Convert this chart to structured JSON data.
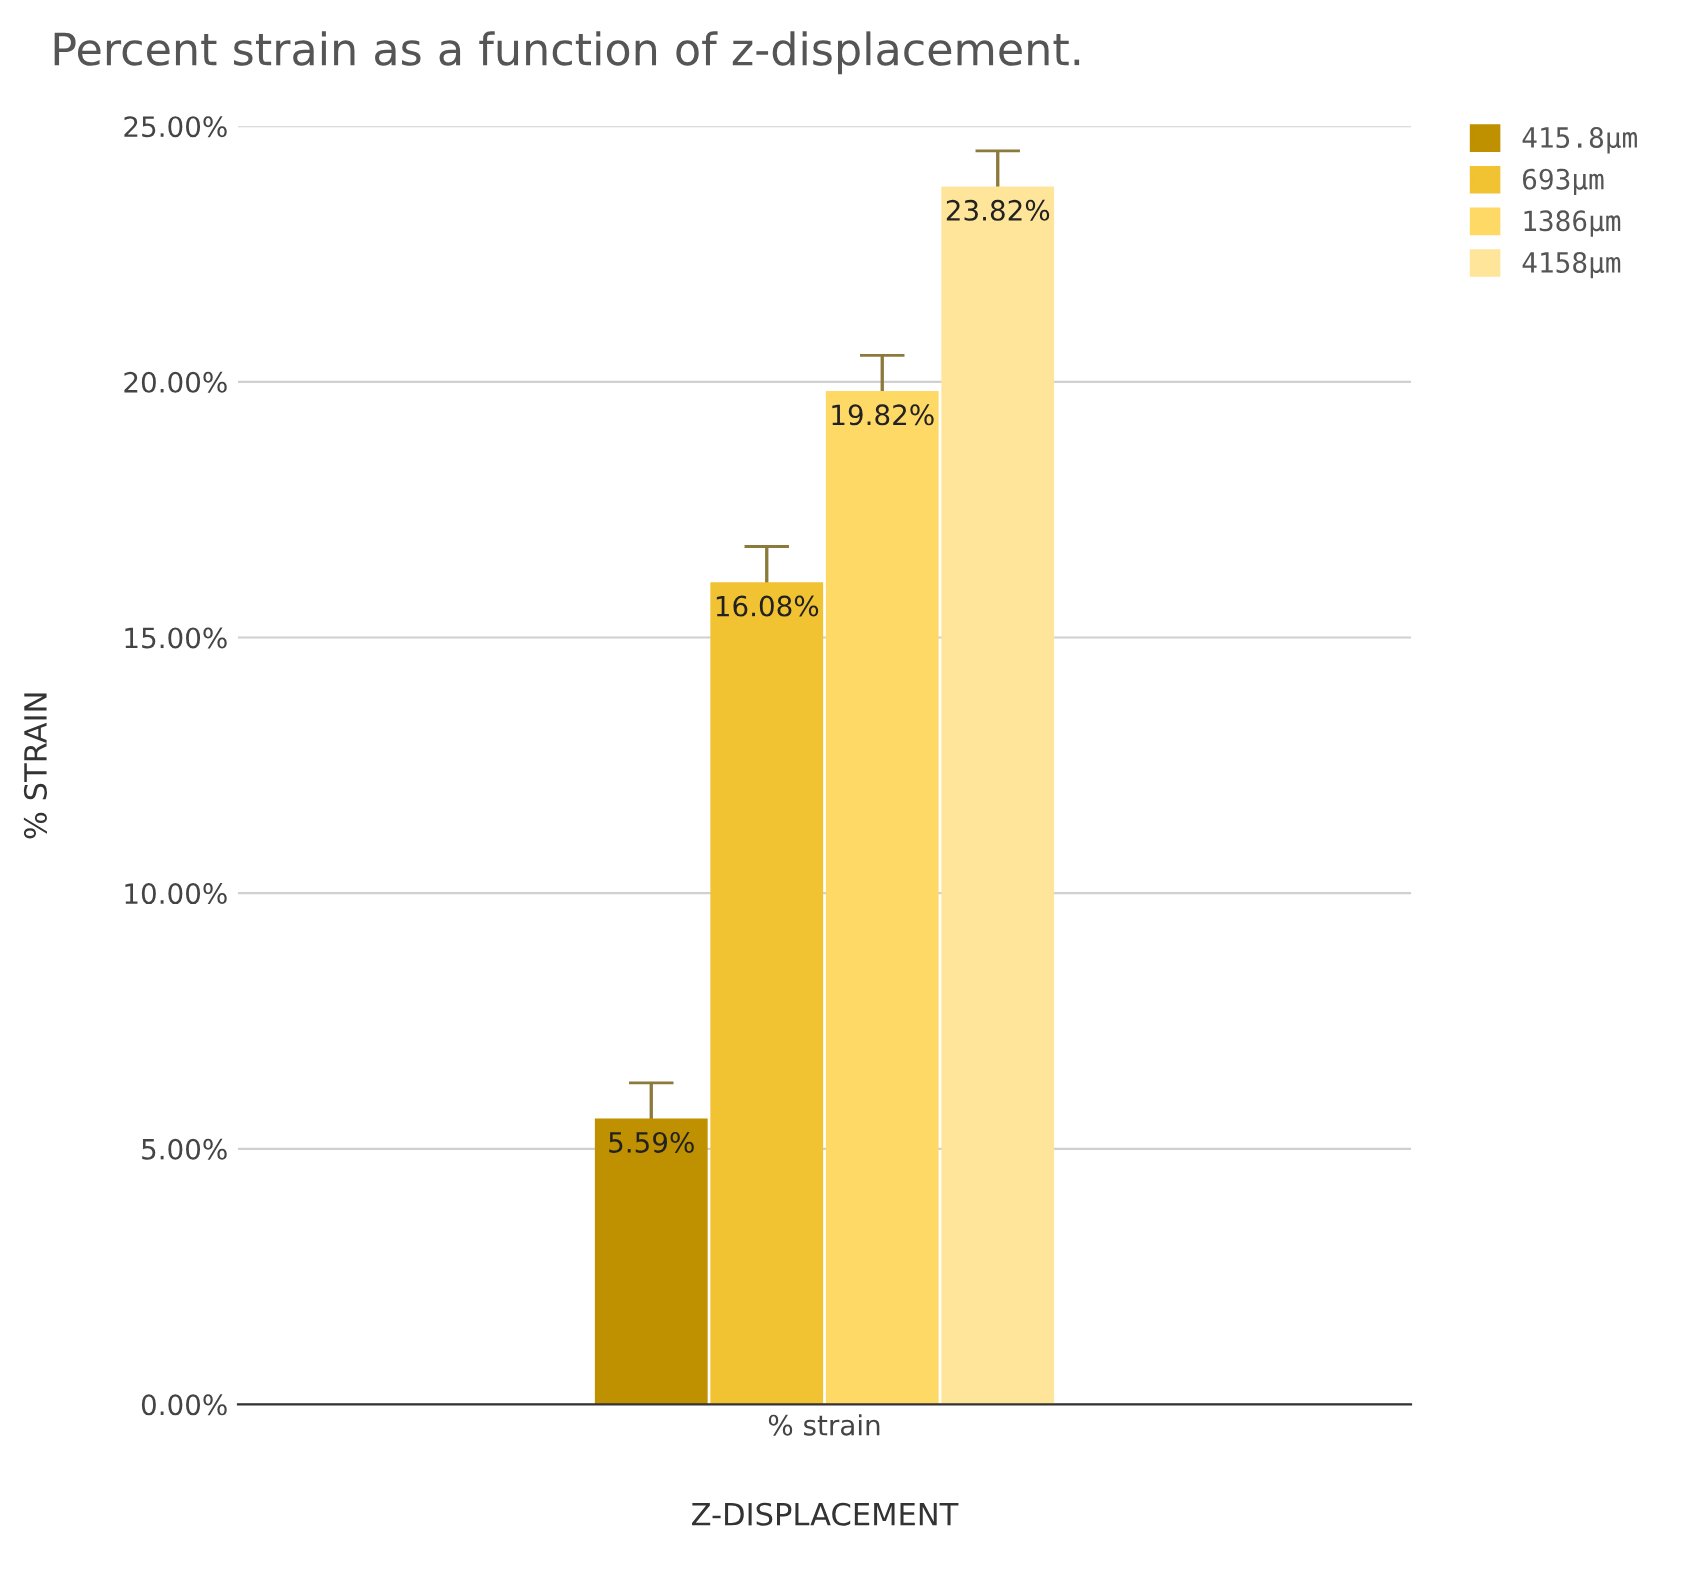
{
  "chart_data": {
    "type": "bar",
    "title": "Percent strain as a function of z-displacement.",
    "xlabel": "Z-DISPLACEMENT",
    "ylabel": "% STRAIN",
    "categories": [
      "% strain"
    ],
    "series": [
      {
        "name": "415.8µm",
        "color": "#bf9000",
        "values": [
          5.59
        ],
        "errors": [
          0.7
        ],
        "value_labels": [
          "5.59%"
        ]
      },
      {
        "name": "693µm",
        "color": "#f1c232",
        "values": [
          16.08
        ],
        "errors": [
          0.7
        ],
        "value_labels": [
          "16.08%"
        ]
      },
      {
        "name": "1386µm",
        "color": "#ffd966",
        "values": [
          19.82
        ],
        "errors": [
          0.7
        ],
        "value_labels": [
          "19.82%"
        ]
      },
      {
        "name": "4158µm",
        "color": "#ffe599",
        "values": [
          23.82
        ],
        "errors": [
          0.7
        ],
        "value_labels": [
          "23.82%"
        ]
      }
    ],
    "ylim": [
      0,
      25
    ],
    "yticks": [
      {
        "value": 0,
        "label": "0.00%"
      },
      {
        "value": 5,
        "label": "5.00%"
      },
      {
        "value": 10,
        "label": "10.00%"
      },
      {
        "value": 15,
        "label": "15.00%"
      },
      {
        "value": 20,
        "label": "20.00%"
      },
      {
        "value": 25,
        "label": "25.00%"
      }
    ],
    "grid": "y",
    "legend": "top right"
  }
}
